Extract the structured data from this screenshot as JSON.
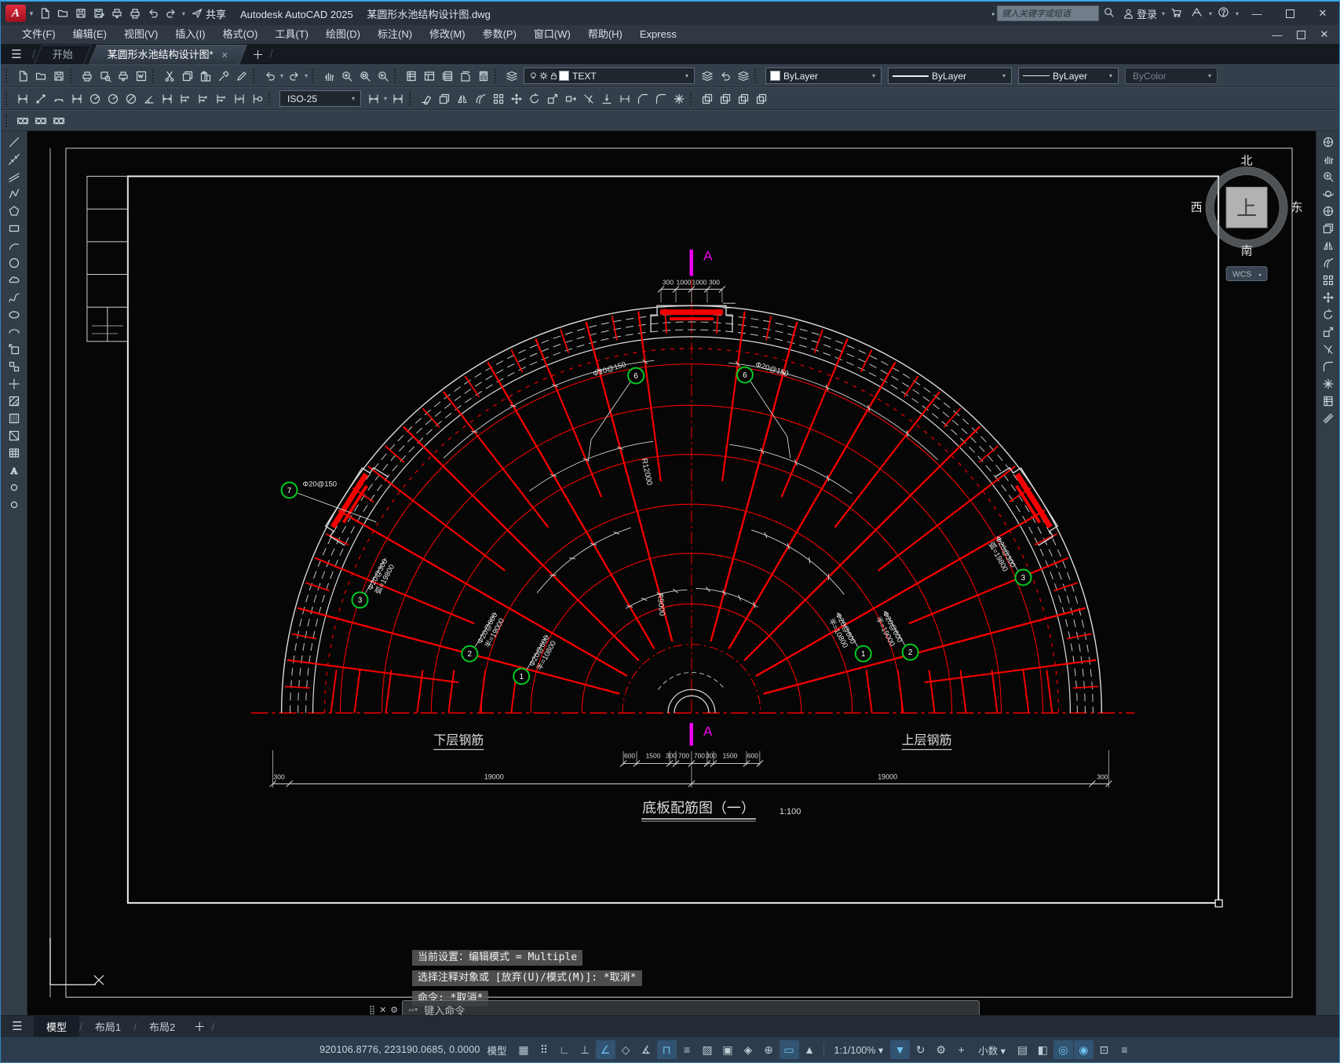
{
  "titlebar": {
    "app_title": "Autodesk AutoCAD 2025",
    "doc_title": "某圆形水池结构设计图.dwg",
    "search_placeholder": "键入关键字或短语",
    "sign_in": "登录",
    "share_label": "共享"
  },
  "menubar": {
    "items": [
      "文件(F)",
      "编辑(E)",
      "视图(V)",
      "插入(I)",
      "格式(O)",
      "工具(T)",
      "绘图(D)",
      "标注(N)",
      "修改(M)",
      "参数(P)",
      "窗口(W)",
      "帮助(H)",
      "Express"
    ]
  },
  "filetabs": {
    "start": "开始",
    "document": "某圆形水池结构设计图*"
  },
  "toolbars": {
    "layer": "TEXT",
    "color": "ByLayer",
    "linetype": "ByLayer",
    "lineweight": "ByLayer",
    "plot_style": "ByColor",
    "dim_style": "ISO-25"
  },
  "drawing": {
    "section_label": "A",
    "top_dims": [
      "300",
      "1000",
      "1000",
      "300"
    ],
    "bottom_dims": [
      "600",
      "1500",
      "300",
      "700",
      "700",
      "300",
      "1500",
      "600"
    ],
    "span_dims": [
      "19000",
      "19000"
    ],
    "edge_dims": [
      "300",
      "300"
    ],
    "radius_labels": [
      "R12000",
      "R9000"
    ],
    "label_lower": "下层钢筋",
    "label_upper": "上层钢筋",
    "title": "底板配筋图（一）",
    "title_scale": "1:100",
    "callouts": [
      {
        "no": "7",
        "spec": "Φ20@150",
        "spec2": ""
      },
      {
        "no": "6",
        "spec": "Φ20@150",
        "spec2": ""
      },
      {
        "no": "6",
        "spec": "Φ20@150",
        "spec2": ""
      },
      {
        "no": "3",
        "spec": "Φ20@300",
        "spec2": "弧=19800"
      },
      {
        "no": "2",
        "spec": "Φ20@600",
        "spec2": "半=19000"
      },
      {
        "no": "1",
        "spec": "Φ20@600",
        "spec2": "半=10800"
      },
      {
        "no": "1",
        "spec": "Φ20@600",
        "spec2": "半=10800"
      },
      {
        "no": "2",
        "spec": "Φ20@600",
        "spec2": "半=19000"
      },
      {
        "no": "3",
        "spec": "Φ20@300",
        "spec2": "弧=19800"
      }
    ],
    "compass": {
      "north": "北",
      "south": "南",
      "east": "东",
      "west": "西",
      "center": "上",
      "wcs": "WCS"
    }
  },
  "command": {
    "history": [
      "当前设置：编辑模式 = Multiple",
      "选择注释对象或 [放弃(U)/模式(M)]: *取消*",
      "命令: *取消*"
    ],
    "placeholder": "键入命令"
  },
  "layout_tabs": {
    "model": "模型",
    "layout1": "布局1",
    "layout2": "布局2"
  },
  "statusbar": {
    "coords": "920106.8776, 223190.0685, 0.0000",
    "model_label": "模型",
    "scale_label": "1:1/100% ▾",
    "units_label": "小数 ▾",
    "icons": [
      {
        "name": "grid-icon",
        "glyph": "▦",
        "active": false
      },
      {
        "name": "snap-mode-icon",
        "glyph": "⠿",
        "active": false
      },
      {
        "name": "infer-constraints-icon",
        "glyph": "∟",
        "active": false
      },
      {
        "name": "ortho-icon",
        "glyph": "⊥",
        "active": false
      },
      {
        "name": "polar-tracking-icon",
        "glyph": "∠",
        "active": true
      },
      {
        "name": "isometric-drafting-icon",
        "glyph": "◇",
        "active": false
      },
      {
        "name": "object-snap-tracking-icon",
        "glyph": "∡",
        "active": false
      },
      {
        "name": "object-snap-icon",
        "glyph": "⊓",
        "active": true
      },
      {
        "name": "lineweight-icon",
        "glyph": "≡",
        "active": false
      },
      {
        "name": "transparency-icon",
        "glyph": "▨",
        "active": false
      },
      {
        "name": "selection-cycling-icon",
        "glyph": "▣",
        "active": false
      },
      {
        "name": "3d-object-snap-icon",
        "glyph": "◈",
        "active": false
      },
      {
        "name": "dynamic-ucs-icon",
        "glyph": "⊕",
        "active": false
      },
      {
        "name": "dynamic-input-icon",
        "glyph": "▭",
        "active": true
      },
      {
        "name": "annotation-monitor-icon",
        "glyph": "▲",
        "active": false
      }
    ],
    "icons_right": [
      {
        "name": "annotation-visibility-icon",
        "glyph": "▼",
        "active": true
      },
      {
        "name": "autoscale-icon",
        "glyph": "↻",
        "active": false
      },
      {
        "name": "workspace-gear-icon",
        "glyph": "⚙",
        "active": false
      },
      {
        "name": "annotation-add-icon",
        "glyph": "+",
        "active": false
      }
    ],
    "icons_end": [
      {
        "name": "quick-properties-icon",
        "glyph": "▤",
        "active": false
      },
      {
        "name": "lock-ui-icon",
        "glyph": "◧",
        "active": false
      },
      {
        "name": "object-isolate-icon",
        "glyph": "◎",
        "active": true
      },
      {
        "name": "graphics-performance-icon",
        "glyph": "◉",
        "active": true
      },
      {
        "name": "clean-screen-icon",
        "glyph": "⊡",
        "active": false
      },
      {
        "name": "customization-icon",
        "glyph": "≡",
        "active": false
      }
    ]
  },
  "icons": {
    "qat": [
      "new-file-icon",
      "open-icon",
      "save-icon",
      "save-as-icon",
      "plot-icon",
      "print-icon",
      "undo-icon",
      "redo-icon"
    ],
    "row1a": [
      "|",
      "new-file-icon",
      "open-icon",
      "save-icon",
      "|",
      "print-icon",
      "print-preview-icon",
      "plot-icon",
      "dwf-export-icon",
      "|",
      "cut-icon",
      "copy-icon",
      "paste-icon",
      "match-properties-icon",
      "edit-icon",
      "|",
      "undo-icon",
      "caret",
      "redo-icon",
      "caret",
      "|",
      "pan-icon",
      "zoom-realtime-icon",
      "zoom-window-icon",
      "zoom-previous-icon",
      "|",
      "properties-palette-icon",
      "design-center-icon",
      "tool-palettes-icon",
      "sheet-set-icon",
      "calculator-icon",
      "|",
      "layer-properties-icon"
    ],
    "row1b": [
      "layer-states-icon",
      "layer-previous-icon",
      "layer-walk-icon",
      "|"
    ],
    "row2a": [
      "|",
      "linear-dimension-icon",
      "aligned-dimension-icon",
      "arc-length-dimension-icon",
      "ordinate-dimension-icon",
      "radius-dimension-icon",
      "jogged-dimension-icon",
      "diameter-dimension-icon",
      "angular-dimension-icon",
      "quick-dimension-icon",
      "baseline-dimension-icon",
      "continue-dimension-icon",
      "dimension-space-icon",
      "dimension-break-icon",
      "tolerance-icon",
      "|"
    ],
    "row2b": [
      "dimension-update-icon",
      "caret",
      "dimension-style-icon",
      "|",
      "erase-icon",
      "copy-icon",
      "mirror-icon",
      "offset-icon",
      "array-icon",
      "move-icon",
      "rotate-icon",
      "scale-icon",
      "stretch-icon",
      "trim-icon",
      "extend-icon",
      "break-icon",
      "chamfer-icon",
      "fillet-icon",
      "explode-icon",
      "|",
      "draw-order-icon",
      "bring-front-icon",
      "send-back-icon",
      "annotation-front-icon"
    ],
    "row3": [
      "|",
      "make-group-icon",
      "ungroup-icon",
      "group-edit-icon"
    ],
    "left": [
      "line-icon",
      "construction-line-icon",
      "multiline-icon",
      "polyline-icon",
      "polygon-icon",
      "rectangle-icon",
      "arc-icon",
      "circle-icon",
      "revision-cloud-icon",
      "spline-icon",
      "ellipse-icon",
      "ellipse-arc-icon",
      "insert-block-icon",
      "create-block-icon",
      "point-icon",
      "hatch-icon",
      "gradient-icon",
      "region-icon",
      "table-icon",
      "multiline-text-icon",
      "green-indicator-icon",
      "teal-indicator-icon"
    ],
    "right": [
      "full-navigation-icon",
      "pan-icon",
      "zoom-realtime-icon",
      "orbit-icon",
      "steering-wheel-icon",
      "copy-icon",
      "mirror-icon",
      "offset-icon",
      "array-icon",
      "move-icon",
      "rotate-icon",
      "scale-icon",
      "trim-icon",
      "fillet-icon",
      "explode-icon",
      "properties-palette-icon",
      "measure-icon"
    ]
  },
  "colors": {
    "accent": "#38a8e8",
    "red": "#f40000",
    "green": "#00cc22",
    "magenta": "#f000f0",
    "white_lines": "#dcdcdc"
  }
}
